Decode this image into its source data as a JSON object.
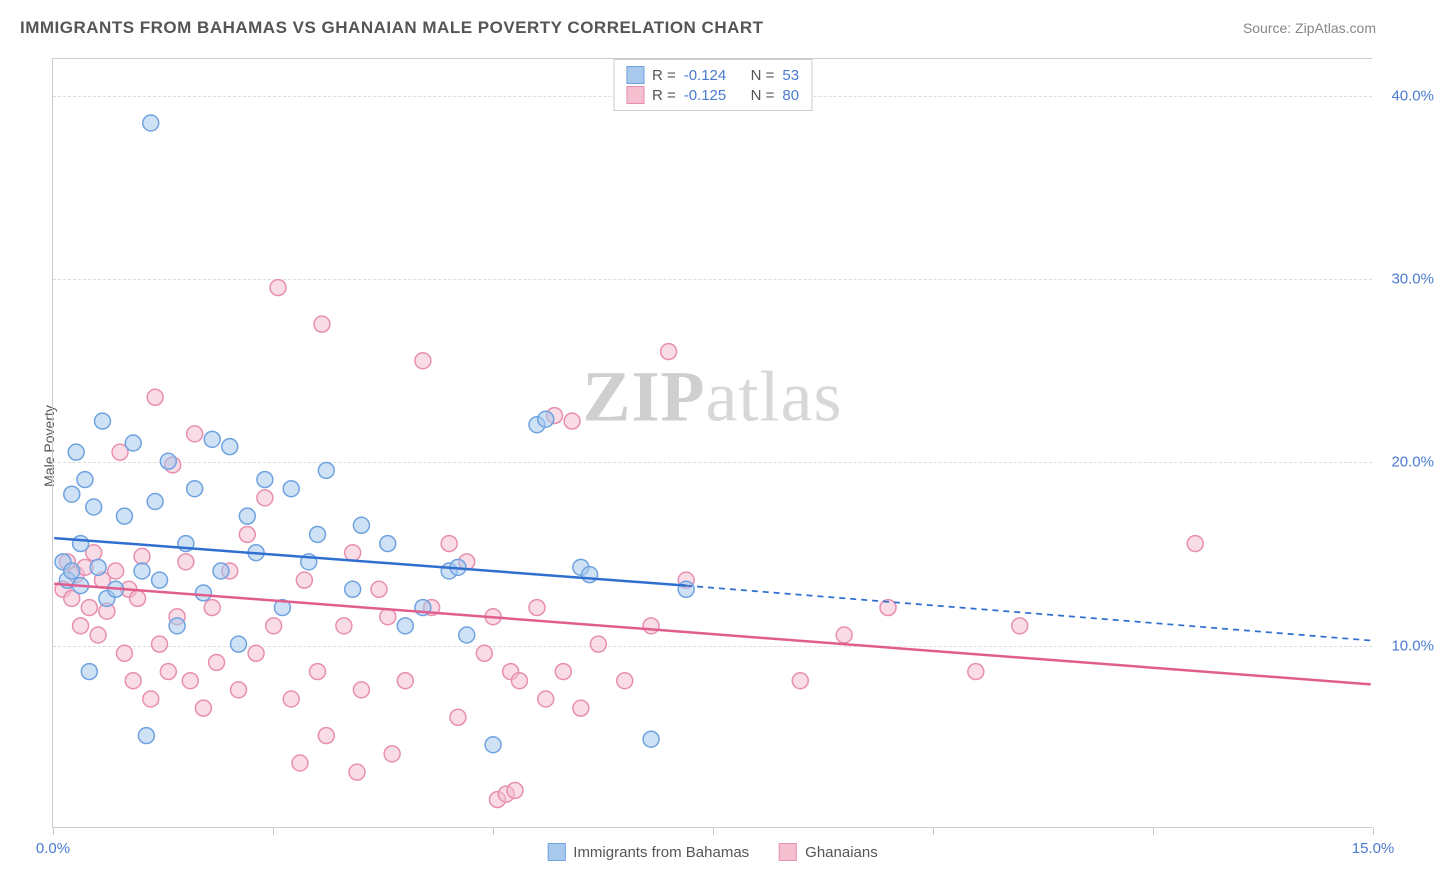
{
  "title": "IMMIGRANTS FROM BAHAMAS VS GHANAIAN MALE POVERTY CORRELATION CHART",
  "source_label": "Source: ZipAtlas.com",
  "watermark": {
    "part1": "ZIP",
    "part2": "atlas"
  },
  "ylabel": "Male Poverty",
  "chart": {
    "type": "scatter",
    "xlim": [
      0,
      15
    ],
    "ylim": [
      0,
      42
    ],
    "x_ticks": [
      0,
      2.5,
      5,
      7.5,
      10,
      12.5,
      15
    ],
    "x_tick_labels": {
      "0": "0.0%",
      "15": "15.0%"
    },
    "y_gridlines": [
      10,
      20,
      30,
      40
    ],
    "y_tick_labels": [
      "10.0%",
      "20.0%",
      "30.0%",
      "40.0%"
    ],
    "background_color": "#ffffff",
    "grid_color": "#dddddd",
    "axis_color": "#cccccc",
    "label_color": "#4a7bd0",
    "text_color": "#555555",
    "marker_radius": 8,
    "marker_opacity": 0.55,
    "line_width": 2.5,
    "series": [
      {
        "key": "bahamas",
        "label": "Immigrants from Bahamas",
        "color_fill": "#a8c8ec",
        "color_stroke": "#6fa3e0",
        "line_color": "#2f6fd0",
        "R": "-0.124",
        "N": "53",
        "trend": {
          "x0": 0,
          "y0": 15.8,
          "x_solid_end": 7.2,
          "y_solid_end": 13.2,
          "x1": 15,
          "y1": 10.2,
          "dashed_from_solid_end": true
        },
        "points": [
          [
            0.1,
            14.5
          ],
          [
            0.15,
            13.5
          ],
          [
            0.2,
            18.2
          ],
          [
            0.2,
            14.0
          ],
          [
            0.25,
            20.5
          ],
          [
            0.3,
            13.2
          ],
          [
            0.3,
            15.5
          ],
          [
            0.35,
            19.0
          ],
          [
            0.4,
            8.5
          ],
          [
            0.45,
            17.5
          ],
          [
            0.5,
            14.2
          ],
          [
            0.55,
            22.2
          ],
          [
            0.6,
            12.5
          ],
          [
            0.7,
            13.0
          ],
          [
            0.8,
            17.0
          ],
          [
            0.9,
            21.0
          ],
          [
            1.0,
            14.0
          ],
          [
            1.05,
            5.0
          ],
          [
            1.1,
            38.5
          ],
          [
            1.15,
            17.8
          ],
          [
            1.2,
            13.5
          ],
          [
            1.3,
            20.0
          ],
          [
            1.4,
            11.0
          ],
          [
            1.5,
            15.5
          ],
          [
            1.6,
            18.5
          ],
          [
            1.7,
            12.8
          ],
          [
            1.8,
            21.2
          ],
          [
            1.9,
            14.0
          ],
          [
            2.0,
            20.8
          ],
          [
            2.1,
            10.0
          ],
          [
            2.2,
            17.0
          ],
          [
            2.3,
            15.0
          ],
          [
            2.4,
            19.0
          ],
          [
            2.6,
            12.0
          ],
          [
            2.7,
            18.5
          ],
          [
            2.9,
            14.5
          ],
          [
            3.0,
            16.0
          ],
          [
            3.1,
            19.5
          ],
          [
            3.4,
            13.0
          ],
          [
            3.5,
            16.5
          ],
          [
            3.8,
            15.5
          ],
          [
            4.0,
            11.0
          ],
          [
            4.2,
            12.0
          ],
          [
            4.5,
            14.0
          ],
          [
            4.6,
            14.2
          ],
          [
            4.7,
            10.5
          ],
          [
            5.0,
            4.5
          ],
          [
            5.5,
            22.0
          ],
          [
            5.6,
            22.3
          ],
          [
            6.0,
            14.2
          ],
          [
            6.1,
            13.8
          ],
          [
            6.8,
            4.8
          ],
          [
            7.2,
            13.0
          ]
        ]
      },
      {
        "key": "ghanaians",
        "label": "Ghanaians",
        "color_fill": "#f4c0cf",
        "color_stroke": "#e88fb0",
        "line_color": "#e05e8f",
        "R": "-0.125",
        "N": "80",
        "trend": {
          "x0": 0,
          "y0": 13.3,
          "x_solid_end": 15,
          "y_solid_end": 7.8,
          "x1": 15,
          "y1": 7.8,
          "dashed_from_solid_end": false
        },
        "points": [
          [
            0.1,
            13.0
          ],
          [
            0.15,
            14.5
          ],
          [
            0.2,
            12.5
          ],
          [
            0.25,
            13.8
          ],
          [
            0.3,
            11.0
          ],
          [
            0.35,
            14.2
          ],
          [
            0.4,
            12.0
          ],
          [
            0.45,
            15.0
          ],
          [
            0.5,
            10.5
          ],
          [
            0.55,
            13.5
          ],
          [
            0.6,
            11.8
          ],
          [
            0.7,
            14.0
          ],
          [
            0.75,
            20.5
          ],
          [
            0.8,
            9.5
          ],
          [
            0.85,
            13.0
          ],
          [
            0.9,
            8.0
          ],
          [
            0.95,
            12.5
          ],
          [
            1.0,
            14.8
          ],
          [
            1.1,
            7.0
          ],
          [
            1.15,
            23.5
          ],
          [
            1.2,
            10.0
          ],
          [
            1.3,
            8.5
          ],
          [
            1.35,
            19.8
          ],
          [
            1.4,
            11.5
          ],
          [
            1.5,
            14.5
          ],
          [
            1.55,
            8.0
          ],
          [
            1.6,
            21.5
          ],
          [
            1.7,
            6.5
          ],
          [
            1.8,
            12.0
          ],
          [
            1.85,
            9.0
          ],
          [
            2.0,
            14.0
          ],
          [
            2.1,
            7.5
          ],
          [
            2.2,
            16.0
          ],
          [
            2.3,
            9.5
          ],
          [
            2.4,
            18.0
          ],
          [
            2.5,
            11.0
          ],
          [
            2.55,
            29.5
          ],
          [
            2.7,
            7.0
          ],
          [
            2.8,
            3.5
          ],
          [
            2.85,
            13.5
          ],
          [
            3.0,
            8.5
          ],
          [
            3.05,
            27.5
          ],
          [
            3.1,
            5.0
          ],
          [
            3.3,
            11.0
          ],
          [
            3.4,
            15.0
          ],
          [
            3.45,
            3.0
          ],
          [
            3.5,
            7.5
          ],
          [
            3.7,
            13.0
          ],
          [
            3.8,
            11.5
          ],
          [
            3.85,
            4.0
          ],
          [
            4.0,
            8.0
          ],
          [
            4.2,
            25.5
          ],
          [
            4.3,
            12.0
          ],
          [
            4.5,
            15.5
          ],
          [
            4.6,
            6.0
          ],
          [
            4.7,
            14.5
          ],
          [
            4.9,
            9.5
          ],
          [
            5.0,
            11.5
          ],
          [
            5.05,
            1.5
          ],
          [
            5.15,
            1.8
          ],
          [
            5.2,
            8.5
          ],
          [
            5.25,
            2.0
          ],
          [
            5.3,
            8.0
          ],
          [
            5.5,
            12.0
          ],
          [
            5.6,
            7.0
          ],
          [
            5.7,
            22.5
          ],
          [
            5.8,
            8.5
          ],
          [
            5.9,
            22.2
          ],
          [
            6.0,
            6.5
          ],
          [
            6.2,
            10.0
          ],
          [
            6.5,
            8.0
          ],
          [
            6.8,
            11.0
          ],
          [
            7.0,
            26.0
          ],
          [
            7.2,
            13.5
          ],
          [
            8.5,
            8.0
          ],
          [
            9.0,
            10.5
          ],
          [
            9.5,
            12.0
          ],
          [
            10.5,
            8.5
          ],
          [
            11.0,
            11.0
          ],
          [
            13.0,
            15.5
          ]
        ]
      }
    ]
  },
  "legend_top": {
    "r_label": "R =",
    "n_label": "N ="
  }
}
